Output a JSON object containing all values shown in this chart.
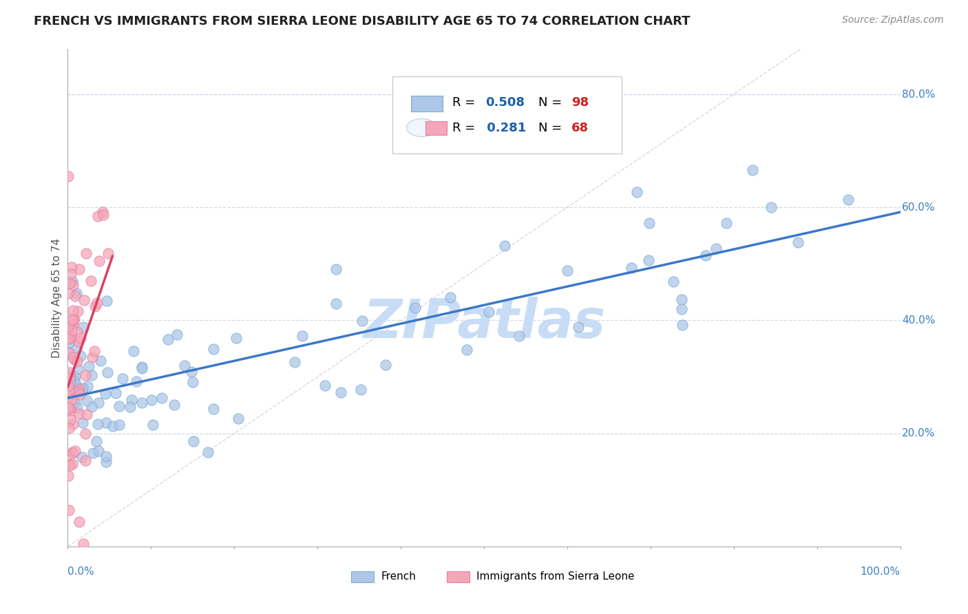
{
  "title": "FRENCH VS IMMIGRANTS FROM SIERRA LEONE DISABILITY AGE 65 TO 74 CORRELATION CHART",
  "source": "Source: ZipAtlas.com",
  "ylabel": "Disability Age 65 to 74",
  "xlim": [
    0.0,
    1.0
  ],
  "ylim": [
    0.0,
    0.88
  ],
  "ytick_vals": [
    0.2,
    0.4,
    0.6,
    0.8
  ],
  "ytick_labels": [
    "20.0%",
    "40.0%",
    "60.0%",
    "80.0%"
  ],
  "xtick_start_label": "0.0%",
  "xtick_end_label": "100.0%",
  "french_color": "#aec6e8",
  "french_edge_color": "#7aaed4",
  "sierra_color": "#f4a7b9",
  "sierra_edge_color": "#e87fa0",
  "french_R": 0.508,
  "french_N": 98,
  "sierra_R": 0.281,
  "sierra_N": 68,
  "french_line_color": "#3a78c9",
  "sierra_line_color": "#d94060",
  "legend_R_color": "#1a5faa",
  "legend_N_color": "#cc2222",
  "watermark": "ZIPatlas",
  "watermark_color": "#c8ddf5",
  "background_color": "#ffffff",
  "grid_color": "#d0d8e8",
  "identity_line_color": "#d0d0d0",
  "title_color": "#222222",
  "title_fontsize": 13,
  "marker_size": 120,
  "french_seed": 42,
  "sierra_seed": 99
}
